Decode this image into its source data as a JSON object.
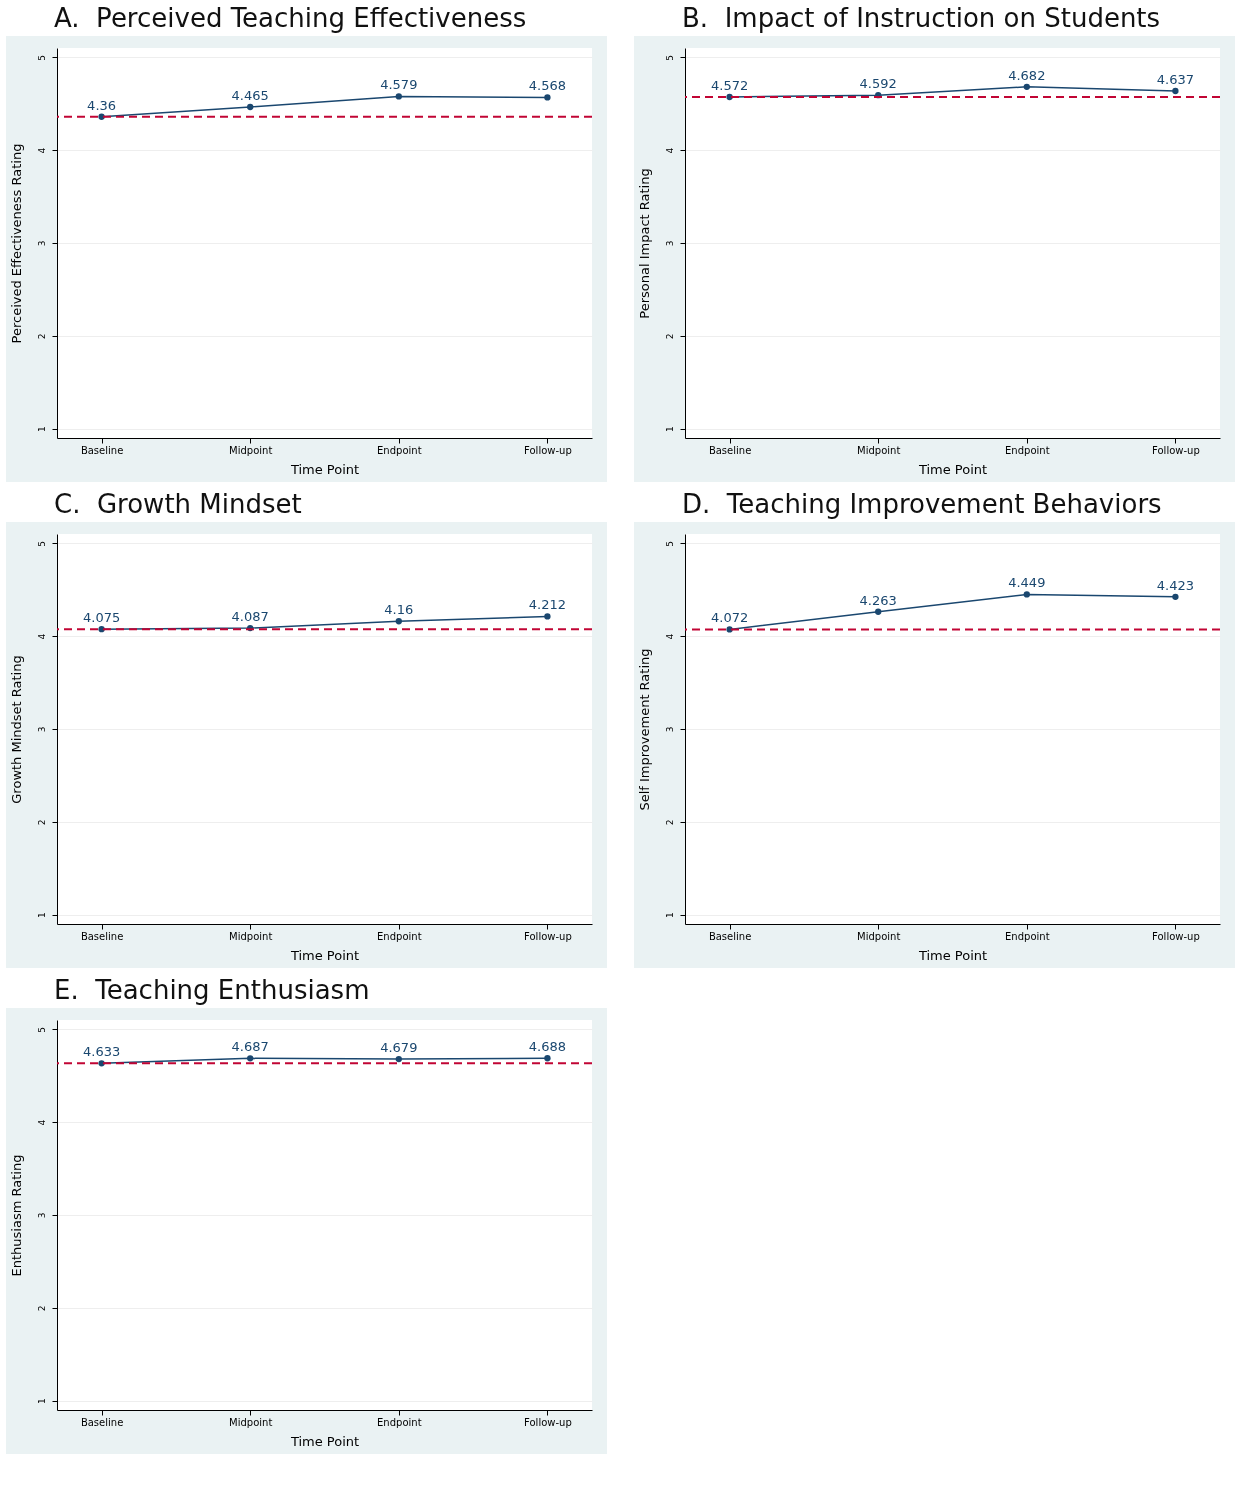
{
  "chart_data": [
    {
      "type": "line",
      "title": "A.  Perceived Teaching Effectiveness",
      "xlabel": "Time Point",
      "ylabel": "Perceived Effectiveness Rating",
      "categories": [
        "Baseline",
        "Midpoint",
        "Endpoint",
        "Follow-up"
      ],
      "series": [
        {
          "color": "#1a476f",
          "values": [
            4.36,
            4.465,
            4.579,
            4.568
          ]
        }
      ],
      "ref_lines": [
        {
          "axis": "y",
          "value": 4.36,
          "color": "#c10534",
          "line_style": "dashed"
        }
      ],
      "ylim": [
        0.9,
        5.1
      ],
      "yticks": [
        1,
        2,
        3,
        4,
        5
      ],
      "grid": "y",
      "marker": "circle",
      "line_style": "solid",
      "data_labels": true
    },
    {
      "type": "line",
      "title": "B.  Impact of Instruction on Students",
      "xlabel": "Time Point",
      "ylabel": "Personal Impact Rating",
      "categories": [
        "Baseline",
        "Midpoint",
        "Endpoint",
        "Follow-up"
      ],
      "series": [
        {
          "color": "#1a476f",
          "values": [
            4.572,
            4.592,
            4.682,
            4.637
          ]
        }
      ],
      "ref_lines": [
        {
          "axis": "y",
          "value": 4.572,
          "color": "#c10534",
          "line_style": "dashed"
        }
      ],
      "ylim": [
        0.9,
        5.1
      ],
      "yticks": [
        1,
        2,
        3,
        4,
        5
      ],
      "grid": "y",
      "marker": "circle",
      "line_style": "solid",
      "data_labels": true
    },
    {
      "type": "line",
      "title": "C.  Growth Mindset",
      "xlabel": "Time Point",
      "ylabel": "Growth Mindset Rating",
      "categories": [
        "Baseline",
        "Midpoint",
        "Endpoint",
        "Follow-up"
      ],
      "series": [
        {
          "color": "#1a476f",
          "values": [
            4.075,
            4.087,
            4.16,
            4.212
          ]
        }
      ],
      "ref_lines": [
        {
          "axis": "y",
          "value": 4.075,
          "color": "#c10534",
          "line_style": "dashed"
        }
      ],
      "ylim": [
        0.9,
        5.1
      ],
      "yticks": [
        1,
        2,
        3,
        4,
        5
      ],
      "grid": "y",
      "marker": "circle",
      "line_style": "solid",
      "data_labels": true
    },
    {
      "type": "line",
      "title": "D.  Teaching Improvement Behaviors",
      "xlabel": "Time Point",
      "ylabel": "Self Improvement Rating",
      "categories": [
        "Baseline",
        "Midpoint",
        "Endpoint",
        "Follow-up"
      ],
      "series": [
        {
          "color": "#1a476f",
          "values": [
            4.072,
            4.263,
            4.449,
            4.423
          ]
        }
      ],
      "ref_lines": [
        {
          "axis": "y",
          "value": 4.072,
          "color": "#c10534",
          "line_style": "dashed"
        }
      ],
      "ylim": [
        0.9,
        5.1
      ],
      "yticks": [
        1,
        2,
        3,
        4,
        5
      ],
      "grid": "y",
      "marker": "circle",
      "line_style": "solid",
      "data_labels": true
    },
    {
      "type": "line",
      "title": "E.  Teaching Enthusiasm",
      "xlabel": "Time Point",
      "ylabel": "Enthusiasm Rating",
      "categories": [
        "Baseline",
        "Midpoint",
        "Endpoint",
        "Follow-up"
      ],
      "series": [
        {
          "color": "#1a476f",
          "values": [
            4.633,
            4.687,
            4.679,
            4.688
          ]
        }
      ],
      "ref_lines": [
        {
          "axis": "y",
          "value": 4.633,
          "color": "#c10534",
          "line_style": "dashed"
        }
      ],
      "ylim": [
        0.9,
        5.1
      ],
      "yticks": [
        1,
        2,
        3,
        4,
        5
      ],
      "grid": "y",
      "marker": "circle",
      "line_style": "solid",
      "data_labels": true
    }
  ]
}
